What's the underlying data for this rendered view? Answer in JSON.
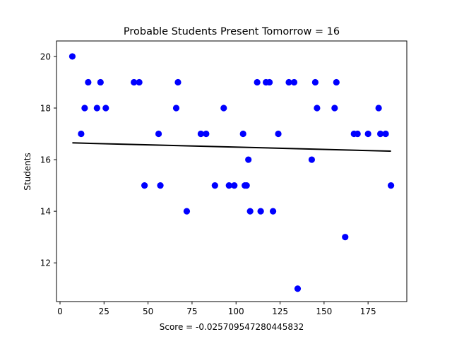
{
  "chart_data": {
    "type": "scatter",
    "title": "Probable Students Present Tomorrow = 16",
    "xlabel": "Score = -0.025709547280445832",
    "ylabel": "Students",
    "xlim": [
      -2,
      197
    ],
    "ylim": [
      10.5,
      20.6
    ],
    "xticks": [
      0,
      25,
      50,
      75,
      100,
      125,
      150,
      175
    ],
    "yticks": [
      12,
      14,
      16,
      18,
      20
    ],
    "grid": false,
    "marker_color": "#0000ff",
    "line_color": "#000000",
    "series": [
      {
        "kind": "points",
        "points": [
          [
            7,
            20
          ],
          [
            12,
            17
          ],
          [
            14,
            18
          ],
          [
            16,
            19
          ],
          [
            21,
            18
          ],
          [
            23,
            19
          ],
          [
            26,
            18
          ],
          [
            42,
            19
          ],
          [
            45,
            19
          ],
          [
            48,
            15
          ],
          [
            56,
            17
          ],
          [
            57,
            15
          ],
          [
            66,
            18
          ],
          [
            67,
            19
          ],
          [
            72,
            14
          ],
          [
            80,
            17
          ],
          [
            83,
            17
          ],
          [
            88,
            15
          ],
          [
            93,
            18
          ],
          [
            96,
            15
          ],
          [
            99,
            15
          ],
          [
            104,
            17
          ],
          [
            105,
            15
          ],
          [
            106,
            15
          ],
          [
            107,
            16
          ],
          [
            108,
            14
          ],
          [
            112,
            19
          ],
          [
            114,
            14
          ],
          [
            117,
            19
          ],
          [
            119,
            19
          ],
          [
            121,
            14
          ],
          [
            124,
            17
          ],
          [
            130,
            19
          ],
          [
            133,
            19
          ],
          [
            135,
            11
          ],
          [
            143,
            16
          ],
          [
            145,
            19
          ],
          [
            146,
            18
          ],
          [
            156,
            18
          ],
          [
            157,
            19
          ],
          [
            162,
            13
          ],
          [
            167,
            17
          ],
          [
            169,
            17
          ],
          [
            175,
            17
          ],
          [
            181,
            18
          ],
          [
            182,
            17
          ],
          [
            185,
            17
          ],
          [
            188,
            15
          ]
        ]
      },
      {
        "kind": "trend",
        "x": [
          7,
          188
        ],
        "y": [
          16.65,
          16.33
        ]
      }
    ]
  }
}
